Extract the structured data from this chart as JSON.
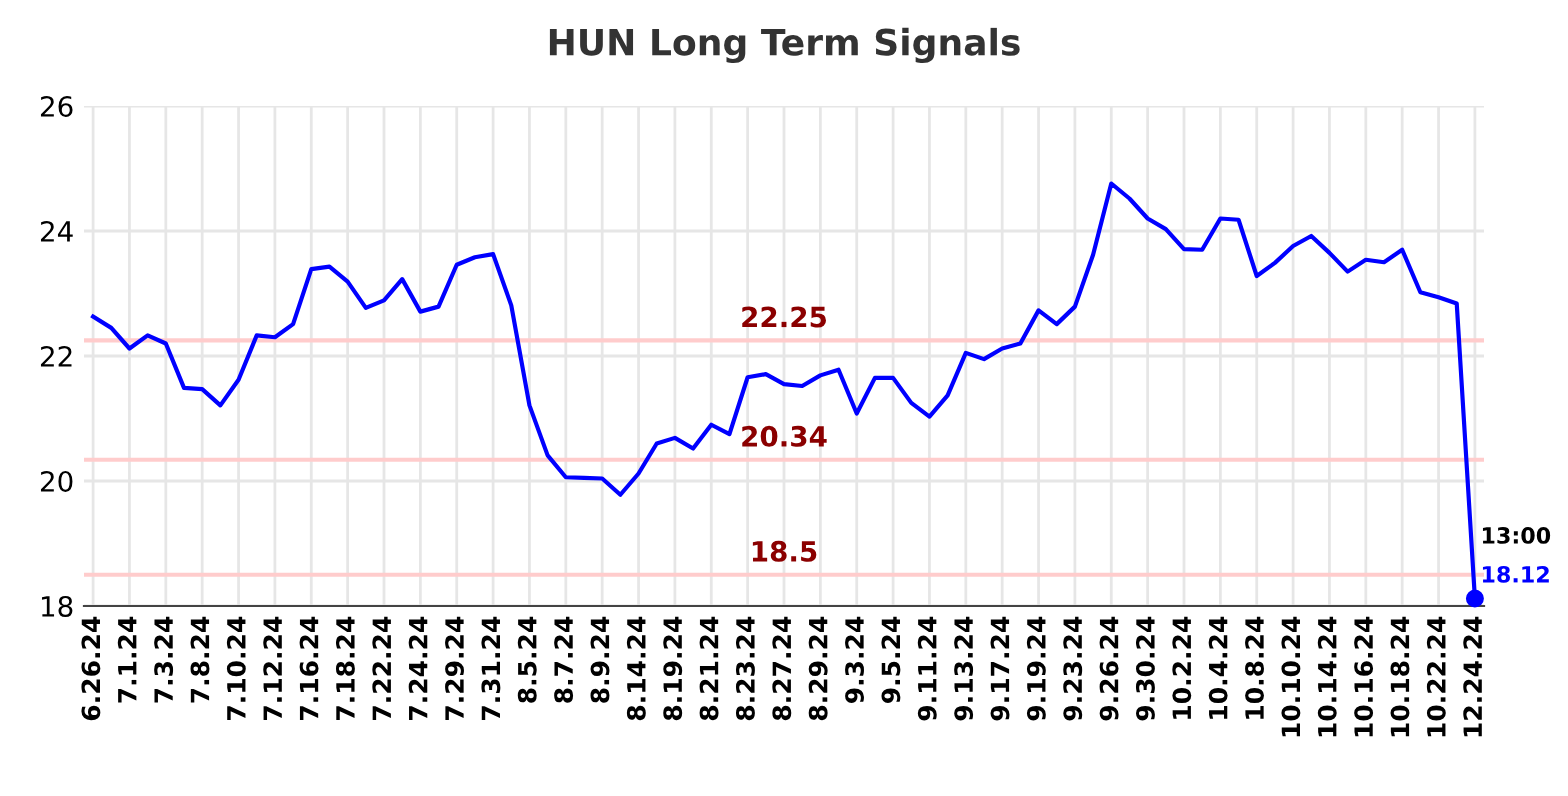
{
  "chart_data": {
    "type": "line",
    "title": "HUN Long Term Signals",
    "categories": [
      "6.26.24",
      null,
      "7.1.24",
      null,
      "7.3.24",
      null,
      "7.8.24",
      null,
      "7.10.24",
      null,
      "7.12.24",
      null,
      "7.16.24",
      null,
      "7.18.24",
      null,
      "7.22.24",
      null,
      "7.24.24",
      null,
      "7.29.24",
      null,
      "7.31.24",
      null,
      "8.5.24",
      null,
      "8.7.24",
      null,
      "8.9.24",
      null,
      "8.14.24",
      null,
      "8.19.24",
      null,
      "8.21.24",
      null,
      "8.23.24",
      null,
      "8.27.24",
      null,
      "8.29.24",
      null,
      "9.3.24",
      null,
      "9.5.24",
      null,
      "9.11.24",
      null,
      "9.13.24",
      null,
      "9.17.24",
      null,
      "9.19.24",
      null,
      "9.23.24",
      null,
      "9.26.24",
      null,
      "9.30.24",
      null,
      "10.2.24",
      null,
      "10.4.24",
      null,
      "10.8.24",
      null,
      "10.10.24",
      null,
      "10.14.24",
      null,
      "10.16.24",
      null,
      "10.18.24",
      null,
      "10.22.24",
      null,
      "12.24.24"
    ],
    "series": [
      {
        "color": "#0000ff",
        "marker": "none",
        "values": [
          22.63,
          22.45,
          22.12,
          22.33,
          22.2,
          21.49,
          21.47,
          21.21,
          21.62,
          22.33,
          22.3,
          22.51,
          23.39,
          23.43,
          23.19,
          22.77,
          22.89,
          23.23,
          22.71,
          22.79,
          23.46,
          23.58,
          23.63,
          22.81,
          21.21,
          20.41,
          20.06,
          20.05,
          20.04,
          19.78,
          20.12,
          20.6,
          20.69,
          20.52,
          20.9,
          20.75,
          21.66,
          21.71,
          21.55,
          21.52,
          21.69,
          21.78,
          21.08,
          21.65,
          21.65,
          21.25,
          21.03,
          21.37,
          22.05,
          21.95,
          22.12,
          22.2,
          22.73,
          22.51,
          22.79,
          23.62,
          24.76,
          24.52,
          24.2,
          24.03,
          23.71,
          23.7,
          24.2,
          24.18,
          23.28,
          23.49,
          23.76,
          23.92,
          23.65,
          23.35,
          23.54,
          23.5,
          23.7,
          23.02,
          22.94,
          22.84,
          18.12
        ]
      },
      {
        "type": "scatter",
        "color": "#0000ff",
        "marker": "circle",
        "values": [
          null,
          null,
          null,
          null,
          null,
          null,
          null,
          null,
          null,
          null,
          null,
          null,
          null,
          null,
          null,
          null,
          null,
          null,
          null,
          null,
          null,
          null,
          null,
          null,
          null,
          null,
          null,
          null,
          null,
          null,
          null,
          null,
          null,
          null,
          null,
          null,
          null,
          null,
          null,
          null,
          null,
          null,
          null,
          null,
          null,
          null,
          null,
          null,
          null,
          null,
          null,
          null,
          null,
          null,
          null,
          null,
          null,
          null,
          null,
          null,
          null,
          null,
          null,
          null,
          null,
          null,
          null,
          null,
          null,
          null,
          null,
          null,
          null,
          null,
          null,
          null,
          18.12
        ]
      }
    ],
    "ylim": [
      18,
      26
    ],
    "yticks": [
      18,
      20,
      22,
      24,
      26
    ],
    "grid": true,
    "legend": false,
    "ref_lines": [
      {
        "axis": "y",
        "value": 22.25,
        "label": "22.25",
        "color": "#ffcccc"
      },
      {
        "axis": "y",
        "value": 20.34,
        "label": "20.34",
        "color": "#ffcccc"
      },
      {
        "axis": "y",
        "value": 18.5,
        "label": "18.5",
        "color": "#ffcccc"
      }
    ],
    "annotations": [
      {
        "text": "13:00",
        "x": "12.24.24",
        "y": 18.12
      },
      {
        "text": "18.12",
        "x": "12.24.24",
        "y": 18.12
      }
    ]
  }
}
